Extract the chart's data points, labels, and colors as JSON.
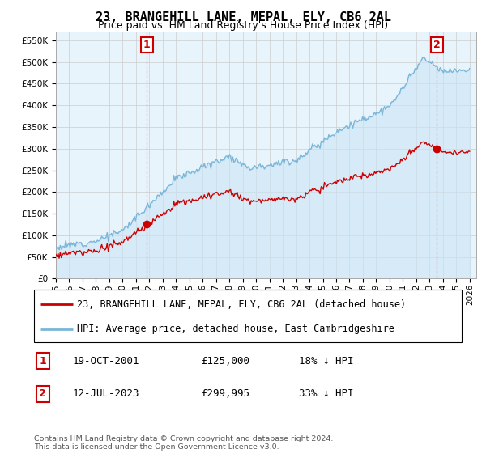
{
  "title": "23, BRANGEHILL LANE, MEPAL, ELY, CB6 2AL",
  "subtitle": "Price paid vs. HM Land Registry's House Price Index (HPI)",
  "ylim": [
    0,
    570000
  ],
  "yticks": [
    0,
    50000,
    100000,
    150000,
    200000,
    250000,
    300000,
    350000,
    400000,
    450000,
    500000,
    550000
  ],
  "xlim_start": 1995.0,
  "xlim_end": 2026.5,
  "hpi_color": "#7ab6d8",
  "hpi_fill_color": "#cce4f5",
  "price_color": "#cc0000",
  "annotation_color": "#cc0000",
  "grid_color": "#cccccc",
  "background_color": "#e8f4fc",
  "legend_label_red": "23, BRANGEHILL LANE, MEPAL, ELY, CB6 2AL (detached house)",
  "legend_label_blue": "HPI: Average price, detached house, East Cambridgeshire",
  "sale1_date": "19-OCT-2001",
  "sale1_price": "£125,000",
  "sale1_hpi": "18% ↓ HPI",
  "sale1_year": 2001.8,
  "sale1_value": 125000,
  "sale2_date": "12-JUL-2023",
  "sale2_price": "£299,995",
  "sale2_hpi": "33% ↓ HPI",
  "sale2_year": 2023.53,
  "sale2_value": 299995,
  "footer": "Contains HM Land Registry data © Crown copyright and database right 2024.\nThis data is licensed under the Open Government Licence v3.0.",
  "title_fontsize": 11,
  "subtitle_fontsize": 9,
  "tick_fontsize": 7.5,
  "legend_fontsize": 8.5,
  "ann_fontsize": 9
}
